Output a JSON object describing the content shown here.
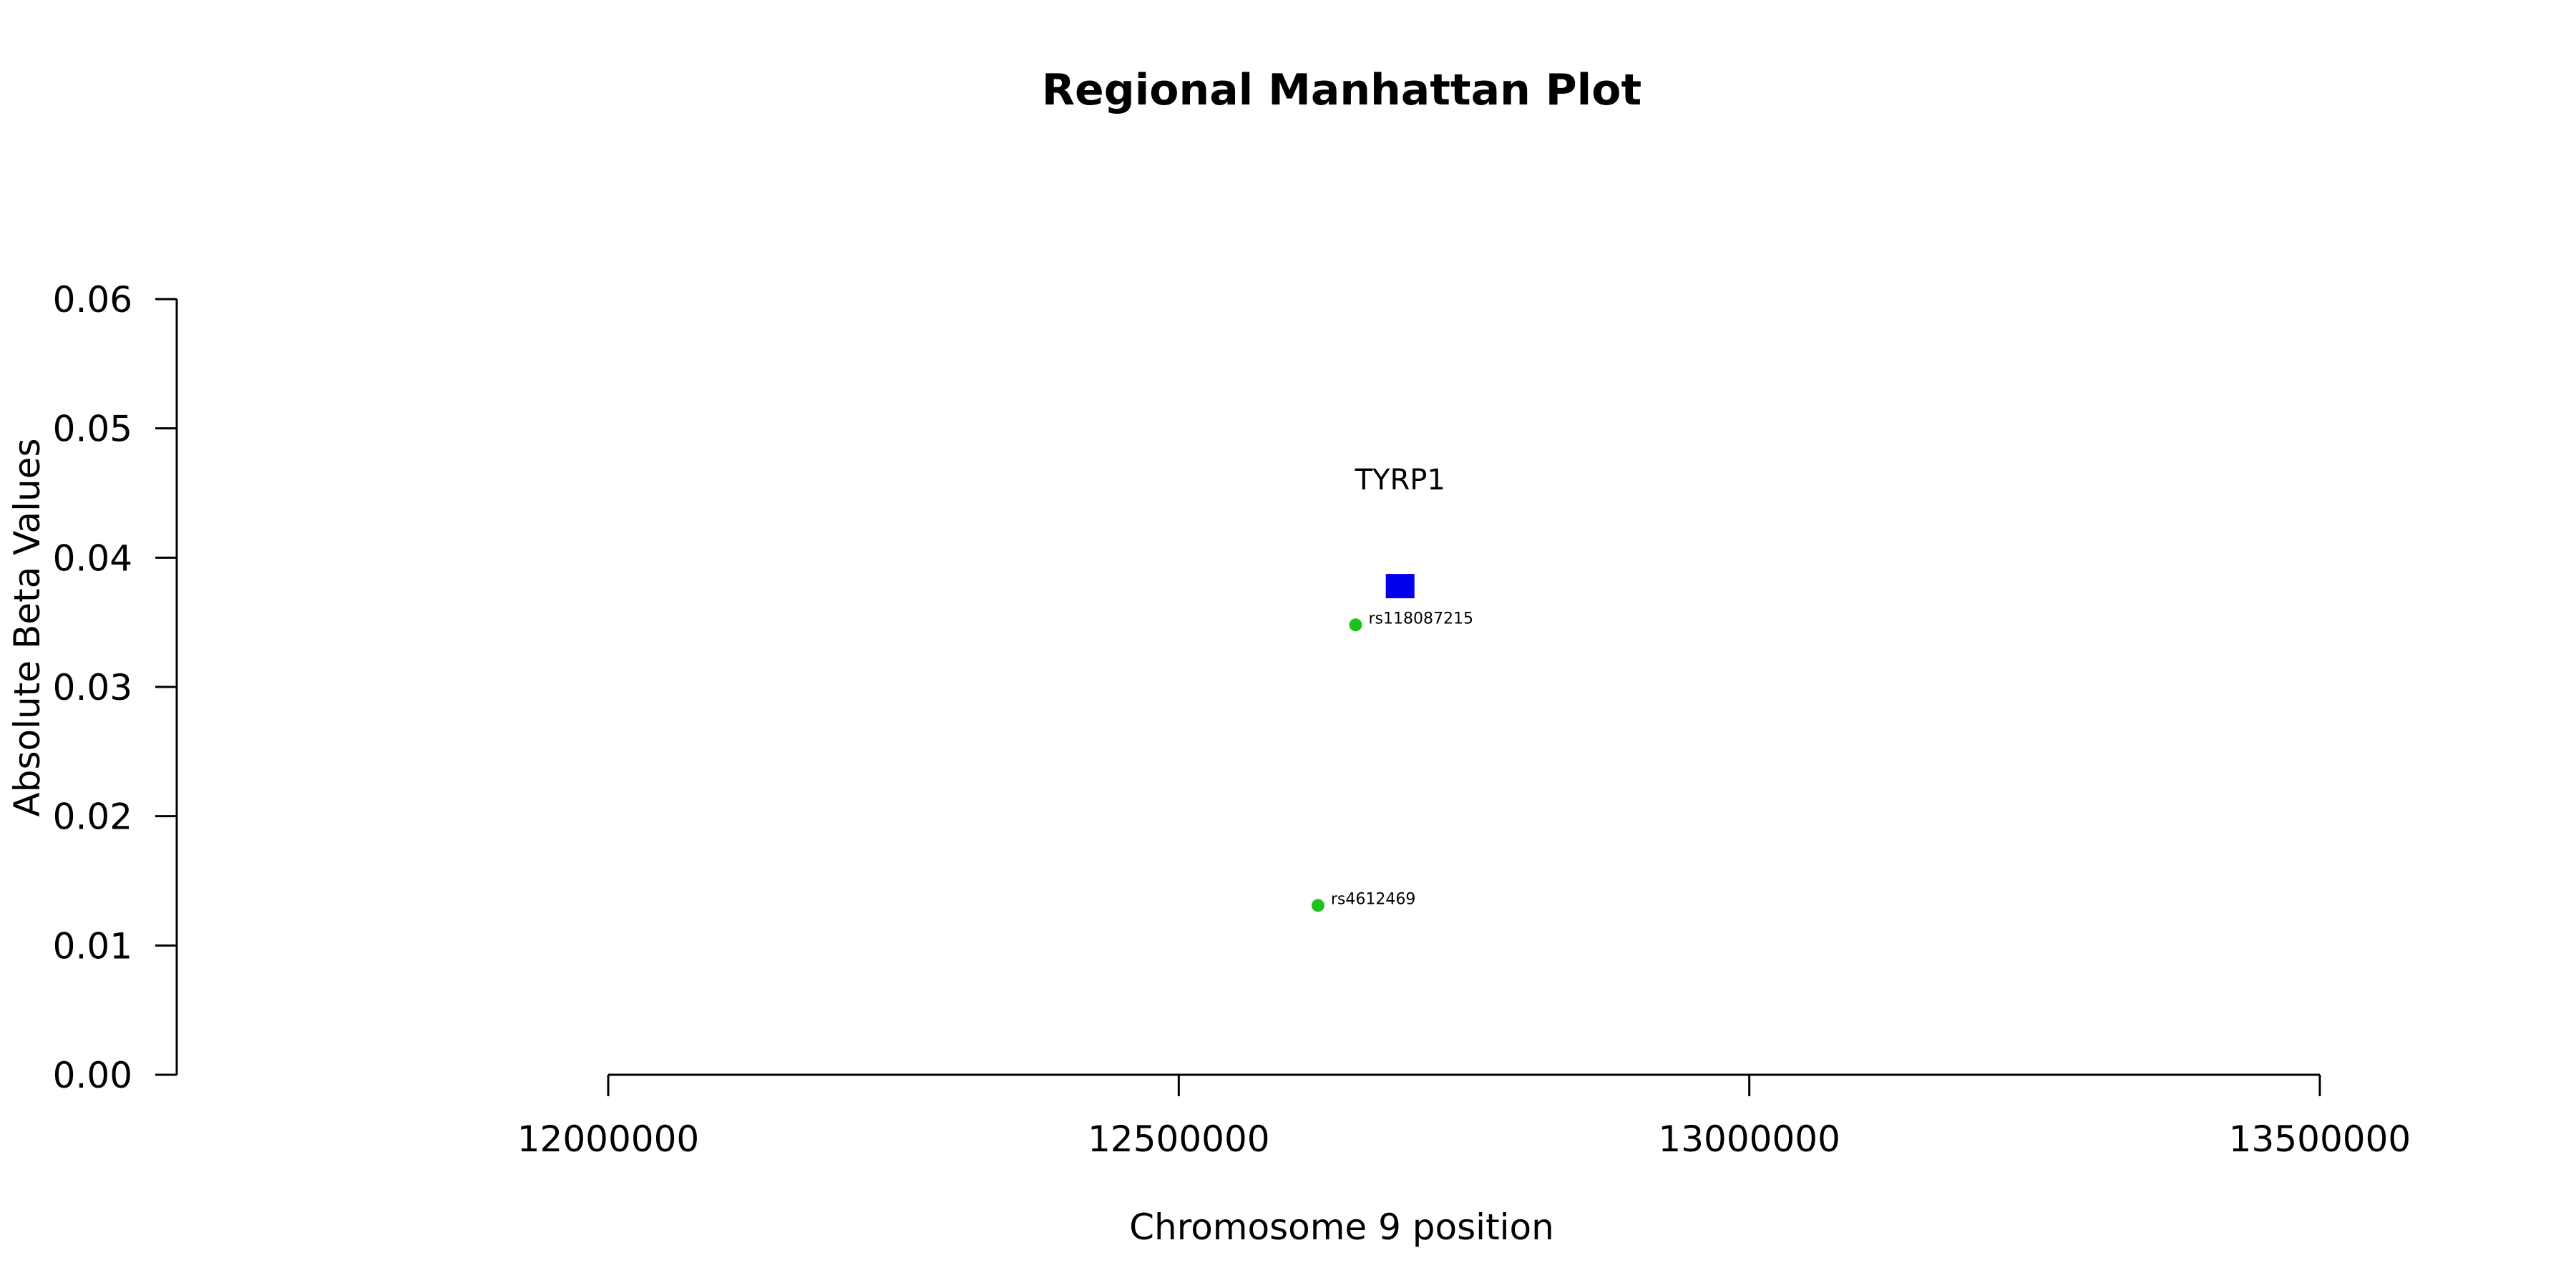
{
  "chart_data": {
    "type": "scatter",
    "title": "Regional Manhattan Plot",
    "xlabel": "Chromosome 9 position",
    "ylabel": "Absolute Beta Values",
    "xlim": [
      12000000,
      13500000
    ],
    "ylim": [
      0,
      0.06
    ],
    "x_ticks": [
      12000000,
      12500000,
      13000000,
      13500000
    ],
    "x_tick_labels": [
      "12000000",
      "12500000",
      "13000000",
      "13500000"
    ],
    "y_ticks": [
      0,
      0.01,
      0.02,
      0.03,
      0.04,
      0.05,
      0.06
    ],
    "y_tick_labels": [
      "0.00",
      "0.01",
      "0.02",
      "0.03",
      "0.04",
      "0.05",
      "0.06"
    ],
    "grid": false,
    "genes": [
      {
        "label": "TYRP1",
        "x": 12694000,
        "y": 0.0378,
        "color": "#0000ee",
        "marker": "square"
      }
    ],
    "points": [
      {
        "label": "rs118087215",
        "x": 12655000,
        "y": 0.0348,
        "color": "#1ec21e"
      },
      {
        "label": "rs4612469",
        "x": 12622000,
        "y": 0.0131,
        "color": "#1ec21e"
      }
    ]
  }
}
